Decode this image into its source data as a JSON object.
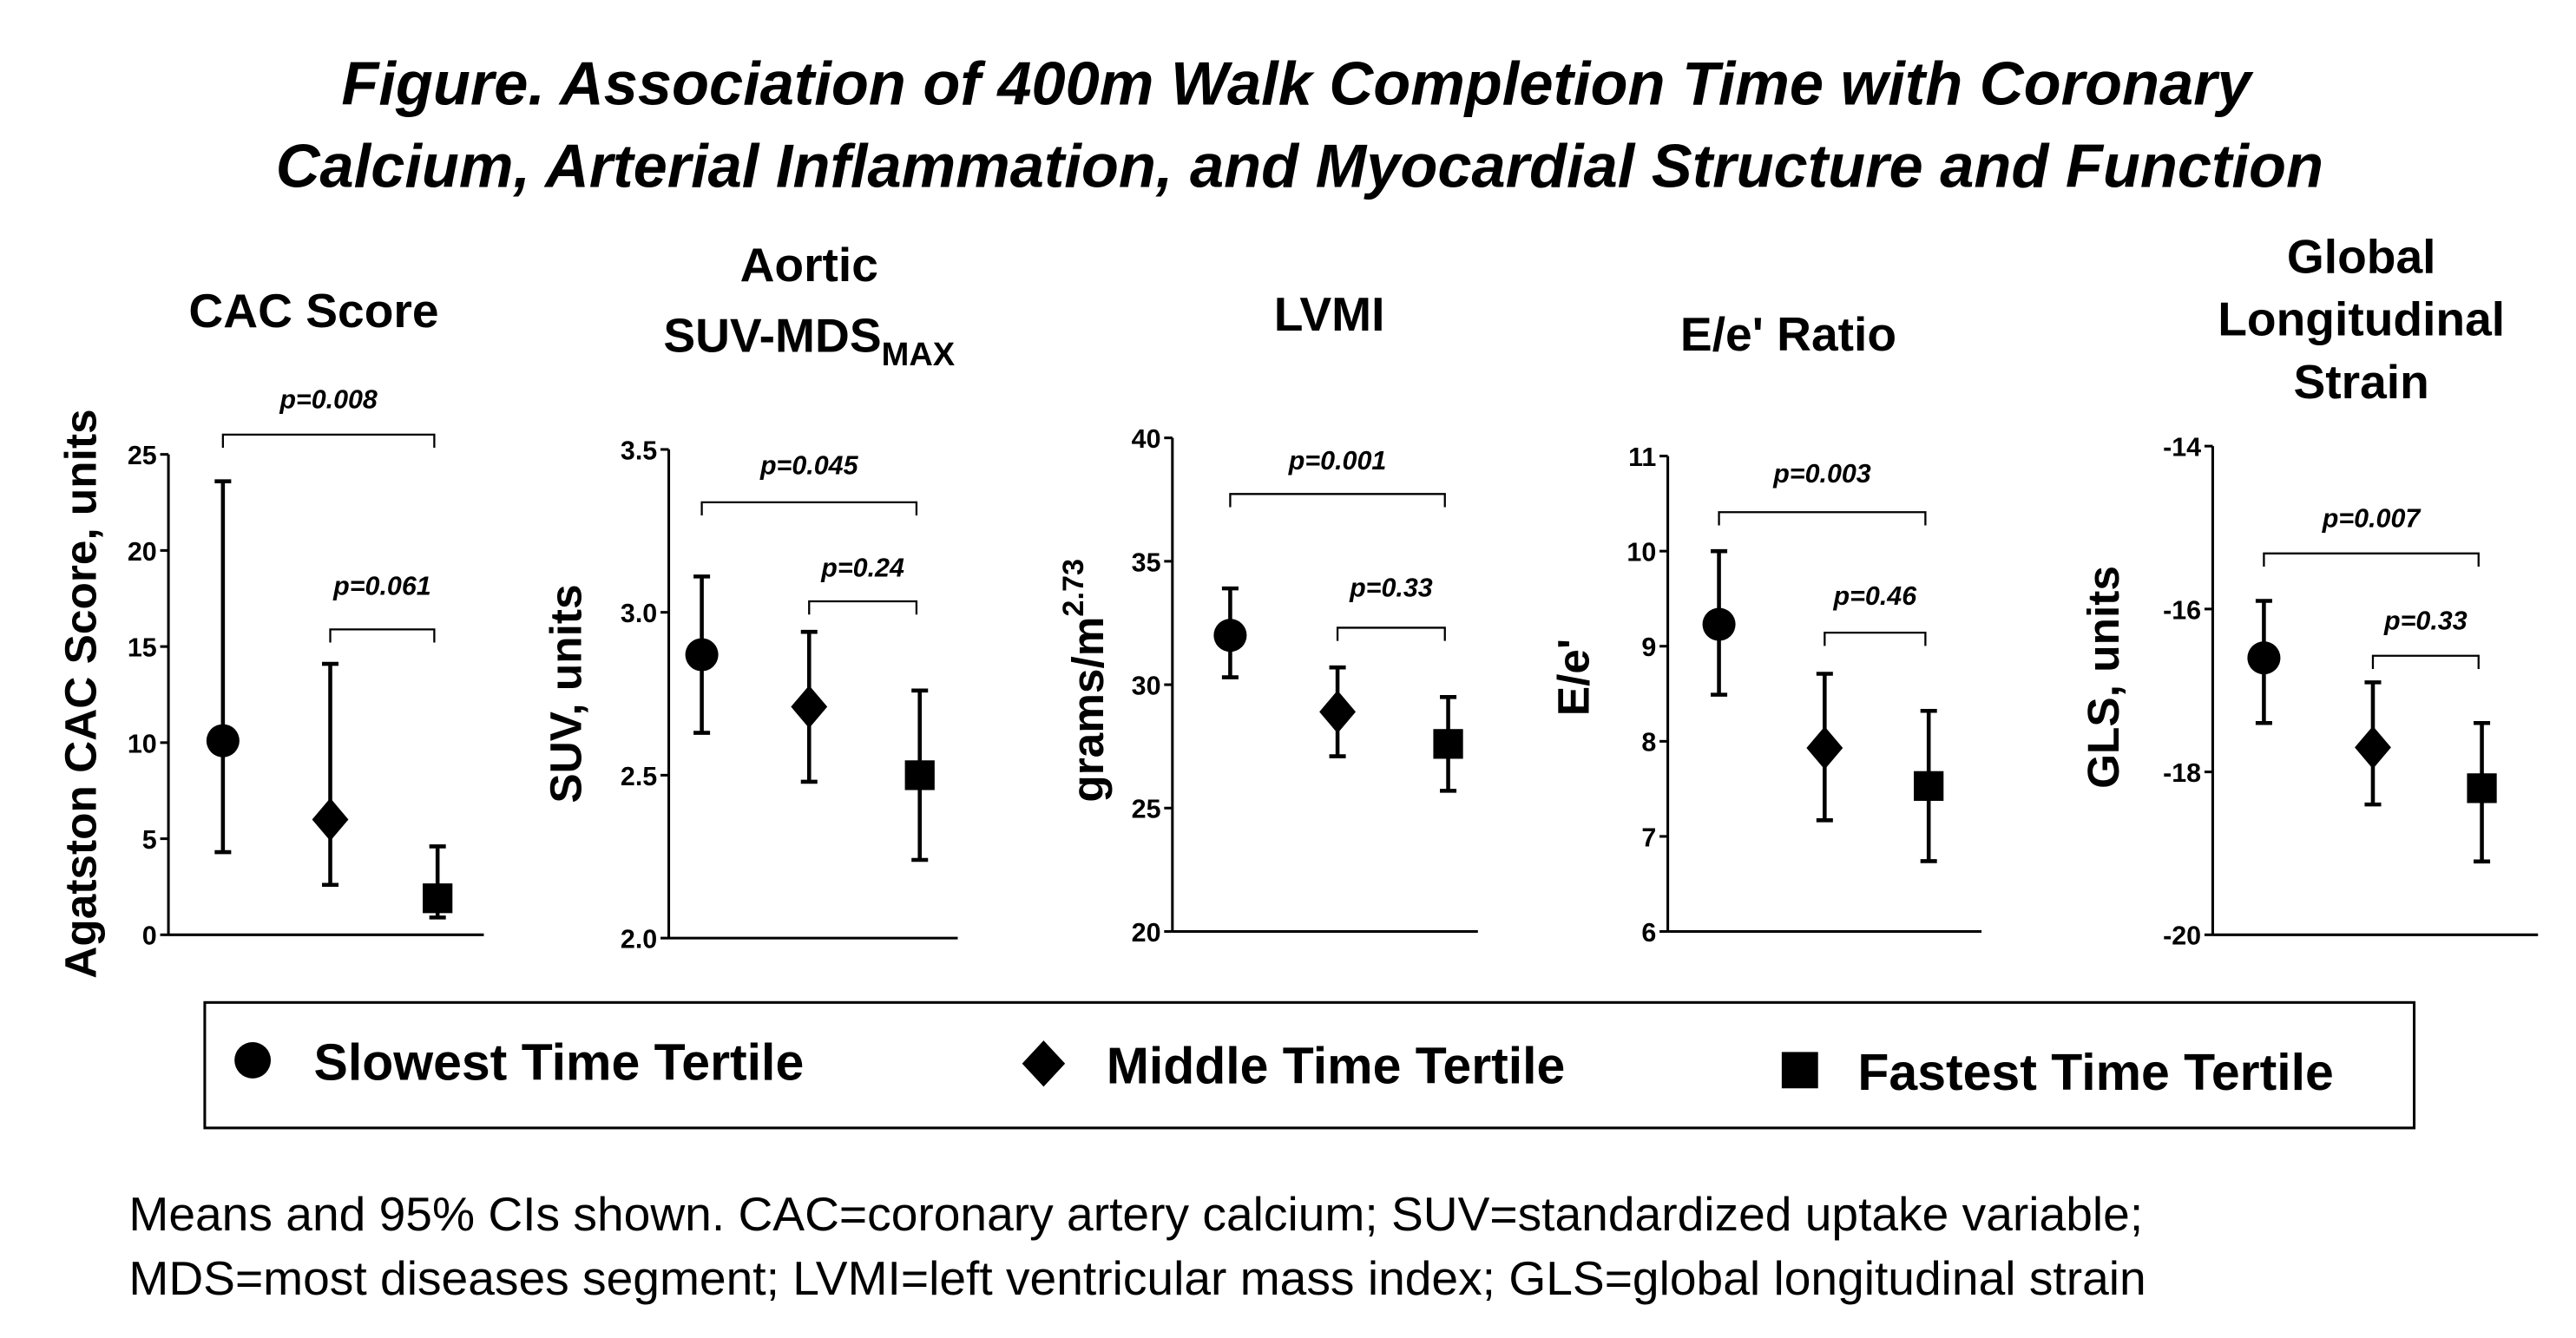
{
  "title_lines": [
    "Figure. Association of 400m Walk Completion Time with Coronary",
    "Calcium, Arterial Inflammation, and Myocardial Structure and Function"
  ],
  "legend": [
    {
      "label": "Slowest Time Tertile",
      "marker": "circle"
    },
    {
      "label": "Middle Time Tertile",
      "marker": "diamond"
    },
    {
      "label": "Fastest Time Tertile",
      "marker": "square"
    }
  ],
  "footnote_lines": [
    "Means and 95% CIs shown.  CAC=coronary artery calcium; SUV=standardized uptake variable;",
    "MDS=most diseases segment; LVMI=left ventricular mass index; GLS=global longitudinal strain"
  ],
  "chart_data": [
    {
      "type": "scatter",
      "title_lines": [
        "CAC Score"
      ],
      "title_sub": "",
      "ylabel": "Agatston CAC Score, units",
      "ylabel_sup": "",
      "ylim": [
        0,
        25
      ],
      "yticks": [
        "0",
        "5",
        "10",
        "15",
        "20",
        "25"
      ],
      "categories": [
        "Slowest Time Tertile",
        "Middle Time Tertile",
        "Fastest Time Tertile"
      ],
      "means": [
        10.1,
        6.0,
        1.9
      ],
      "ci_low": [
        4.3,
        2.6,
        0.9
      ],
      "ci_high": [
        23.6,
        14.1,
        4.6
      ],
      "comparisons": [
        {
          "groups": [
            0,
            2
          ],
          "label": "p=0.008"
        },
        {
          "groups": [
            1,
            2
          ],
          "label": "p=0.061"
        }
      ]
    },
    {
      "type": "scatter",
      "title_lines": [
        "Aortic",
        "SUV-MDS"
      ],
      "title_sub": "MAX",
      "ylabel": "SUV, units",
      "ylabel_sup": "",
      "ylim": [
        2.0,
        3.5
      ],
      "yticks": [
        "2.0",
        "2.5",
        "3.0",
        "3.5"
      ],
      "categories": [
        "Slowest Time Tertile",
        "Middle Time Tertile",
        "Fastest Time Tertile"
      ],
      "means": [
        2.87,
        2.71,
        2.5
      ],
      "ci_low": [
        2.63,
        2.48,
        2.24
      ],
      "ci_high": [
        3.11,
        2.94,
        2.76
      ],
      "comparisons": [
        {
          "groups": [
            0,
            2
          ],
          "label": "p=0.045"
        },
        {
          "groups": [
            1,
            2
          ],
          "label": "p=0.24"
        }
      ]
    },
    {
      "type": "scatter",
      "title_lines": [
        "LVMI"
      ],
      "title_sub": "",
      "ylabel": "grams/m",
      "ylabel_sup": "2.73",
      "ylim": [
        20,
        40
      ],
      "yticks": [
        "20",
        "25",
        "30",
        "35",
        "40"
      ],
      "categories": [
        "Slowest Time Tertile",
        "Middle Time Tertile",
        "Fastest Time Tertile"
      ],
      "means": [
        32.0,
        28.9,
        27.6
      ],
      "ci_low": [
        30.3,
        27.1,
        25.7
      ],
      "ci_high": [
        33.9,
        30.7,
        29.5
      ],
      "comparisons": [
        {
          "groups": [
            0,
            2
          ],
          "label": "p=0.001"
        },
        {
          "groups": [
            1,
            2
          ],
          "label": "p=0.33"
        }
      ]
    },
    {
      "type": "scatter",
      "title_lines": [
        "E/e' Ratio"
      ],
      "title_sub": "",
      "ylabel": "E/e'",
      "ylabel_sup": "",
      "ylim": [
        6,
        11
      ],
      "yticks": [
        "6",
        "7",
        "8",
        "9",
        "10",
        "11"
      ],
      "categories": [
        "Slowest Time Tertile",
        "Middle Time Tertile",
        "Fastest Time Tertile"
      ],
      "means": [
        9.23,
        7.93,
        7.53
      ],
      "ci_low": [
        8.49,
        7.17,
        6.74
      ],
      "ci_high": [
        10.0,
        8.71,
        8.32
      ],
      "comparisons": [
        {
          "groups": [
            0,
            2
          ],
          "label": "p=0.003"
        },
        {
          "groups": [
            1,
            2
          ],
          "label": "p=0.46"
        }
      ]
    },
    {
      "type": "scatter",
      "title_lines": [
        "Global",
        "Longitudinal",
        "Strain"
      ],
      "title_sub": "",
      "ylabel": "GLS, units",
      "ylabel_sup": "",
      "ylim": [
        -20,
        -14
      ],
      "yticks": [
        "-20",
        "-18",
        "-16",
        "-14"
      ],
      "categories": [
        "Slowest Time Tertile",
        "Middle Time Tertile",
        "Fastest Time Tertile"
      ],
      "means": [
        -16.6,
        -17.7,
        -18.2
      ],
      "ci_low": [
        -17.4,
        -18.4,
        -19.1
      ],
      "ci_high": [
        -15.9,
        -16.9,
        -17.4
      ],
      "comparisons": [
        {
          "groups": [
            0,
            2
          ],
          "label": "p=0.007"
        },
        {
          "groups": [
            1,
            2
          ],
          "label": "p=0.33"
        }
      ]
    }
  ]
}
